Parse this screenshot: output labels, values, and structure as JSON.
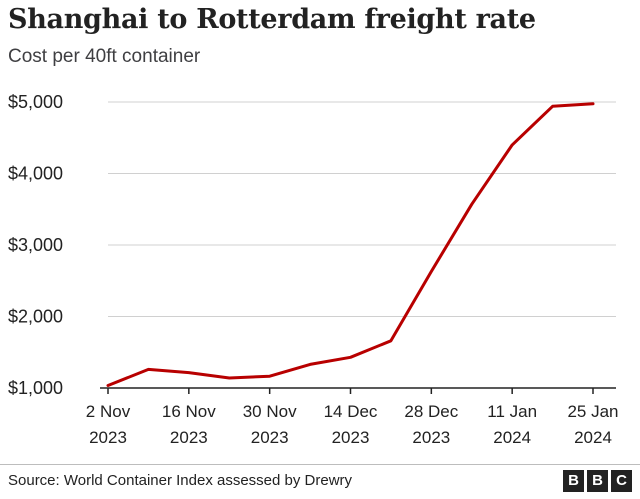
{
  "chart_data": {
    "type": "line",
    "title": "Shanghai to Rotterdam freight rate",
    "subtitle": "Cost per 40ft container",
    "xlabel": "",
    "ylabel": "",
    "x": [
      "2 Nov 2023",
      "9 Nov 2023",
      "16 Nov 2023",
      "23 Nov 2023",
      "30 Nov 2023",
      "7 Dec 2023",
      "14 Dec 2023",
      "21 Dec 2023",
      "28 Dec 2023",
      "4 Jan 2024",
      "11 Jan 2024",
      "18 Jan 2024",
      "25 Jan 2024"
    ],
    "series": [
      {
        "name": "Shanghai to Rotterdam",
        "color": "#b80000",
        "values": [
          1035,
          1260,
          1215,
          1140,
          1165,
          1330,
          1430,
          1660,
          2630,
          3570,
          4400,
          4940,
          4975
        ]
      }
    ],
    "ylim": [
      1000,
      5000
    ],
    "yticks": [
      1000,
      2000,
      3000,
      4000,
      5000
    ],
    "ytick_labels": [
      "$1,000",
      "$2,000",
      "$3,000",
      "$4,000",
      "$5,000"
    ],
    "xtick_indices": [
      0,
      2,
      4,
      6,
      8,
      10,
      12
    ],
    "xtick_labels": [
      {
        "day": "2 Nov",
        "year": "2023"
      },
      {
        "day": "16 Nov",
        "year": "2023"
      },
      {
        "day": "30 Nov",
        "year": "2023"
      },
      {
        "day": "14 Dec",
        "year": "2023"
      },
      {
        "day": "28 Dec",
        "year": "2023"
      },
      {
        "day": "11 Jan",
        "year": "2024"
      },
      {
        "day": "25 Jan",
        "year": "2024"
      }
    ],
    "grid": true
  },
  "footer": {
    "source": "Source: World Container Index assessed by Drewry",
    "logo_letters": [
      "B",
      "B",
      "C"
    ]
  }
}
